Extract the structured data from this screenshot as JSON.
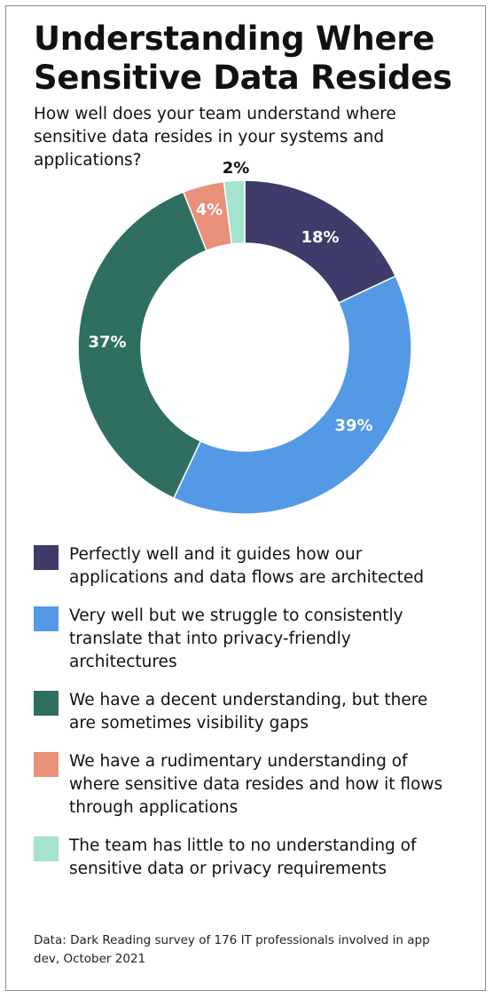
{
  "title": "Understanding Where Sensitive Data Resides",
  "subtitle": "How well does your team understand where sensitive data resides in your systems and applications?",
  "source": "Data: Dark Reading survey of 176 IT professionals involved in app dev, October 2021",
  "chart_data": {
    "type": "pie",
    "style": "donut",
    "categories": [
      "Perfectly well and it guides how our applications and data flows are architected",
      "Very well but we struggle to consistently translate that into privacy-friendly architectures",
      "We have a decent understanding, but there are sometimes visibility gaps",
      "We have a rudimentary understanding of where sensitive data resides and how it flows through applications",
      "The team has little to no understanding of sensitive data or privacy requirements"
    ],
    "values": [
      18,
      39,
      37,
      4,
      2
    ],
    "labels": [
      "18%",
      "39%",
      "37%",
      "4%",
      "2%"
    ],
    "colors": [
      "#3f3b6b",
      "#5399e6",
      "#2f6f62",
      "#e99079",
      "#a3e3cf"
    ],
    "label_colors": [
      "#ffffff",
      "#ffffff",
      "#ffffff",
      "#ffffff",
      "#111111"
    ],
    "legend_position": "bottom"
  }
}
